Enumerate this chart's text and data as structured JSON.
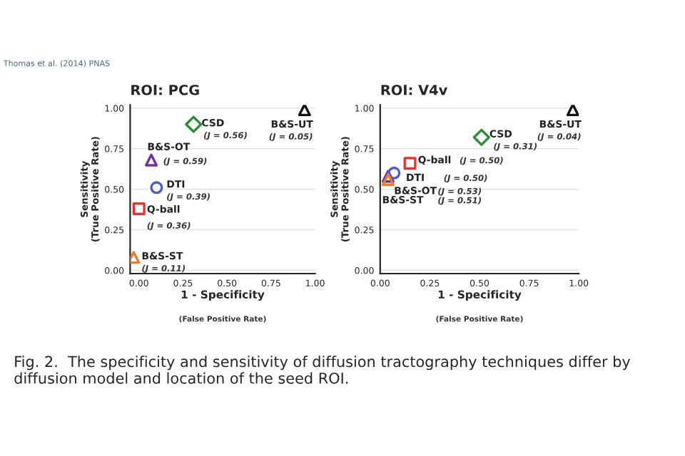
{
  "chart_data": [
    {
      "type": "scatter",
      "title": "ROI: PCG",
      "xlabel": "1 - Specificity\n(False Positive Rate)",
      "ylabel": "Sensitivity\n(True Positive Rate)",
      "xlim": [
        -0.05,
        1.0
      ],
      "ylim": [
        -0.02,
        1.02
      ],
      "xticks": [
        {
          "value": 0,
          "label": "0.00"
        },
        {
          "value": 0.25,
          "label": "0.25"
        },
        {
          "value": 0.5,
          "label": "0.50"
        },
        {
          "value": 0.75,
          "label": "0.75"
        },
        {
          "value": 1,
          "label": "1.00"
        }
      ],
      "yticks": [
        {
          "value": 0,
          "label": "0.00"
        },
        {
          "value": 0.25,
          "label": "0.25"
        },
        {
          "value": 0.5,
          "label": "0.50"
        },
        {
          "value": 0.75,
          "label": "0.75"
        },
        {
          "value": 1,
          "label": "1.00"
        }
      ],
      "grid": "y",
      "legend": false,
      "series": [
        {
          "name": "CSD",
          "color": "#2e8b3a",
          "marker": "diamond",
          "x": [
            0.31
          ],
          "values": [
            0.9
          ]
        },
        {
          "name": "B&S-UT",
          "color": "#111111",
          "marker": "triangle",
          "x": [
            0.94
          ],
          "values": [
            0.99
          ]
        },
        {
          "name": "B&S-OT",
          "color": "#7030a0",
          "marker": "triangle",
          "x": [
            0.07
          ],
          "values": [
            0.68
          ]
        },
        {
          "name": "DTI",
          "color": "#4a5fc1",
          "marker": "circle",
          "x": [
            0.1
          ],
          "values": [
            0.51
          ]
        },
        {
          "name": "Q-ball",
          "color": "#e8322d",
          "marker": "square",
          "x": [
            0.0
          ],
          "values": [
            0.38
          ]
        },
        {
          "name": "B&S-ST",
          "color": "#e87d2a",
          "marker": "triangle",
          "x": [
            -0.03
          ],
          "values": [
            0.08
          ]
        }
      ],
      "annotations": [
        {
          "text": "(J = 0.56)",
          "x": 0.31,
          "y": 0.9
        },
        {
          "text": "(J = 0.05)",
          "x": 0.94,
          "y": 0.99
        },
        {
          "text": "(J = 0.59)",
          "x": 0.07,
          "y": 0.68
        },
        {
          "text": "(J = 0.39)",
          "x": 0.1,
          "y": 0.51
        },
        {
          "text": "(J = 0.36)",
          "x": 0.0,
          "y": 0.38
        },
        {
          "text": "(J = 0.11)",
          "x": -0.03,
          "y": 0.08
        },
        "Thomas et al. (2014) PNAS",
        "Fig. 2.  The specificity and sensitivity of diffusion tractography techniques differ by diffusion model and location of the seed ROI."
      ]
    },
    {
      "type": "scatter",
      "title": "ROI: V4v",
      "xlabel": "1 - Specificity\n(False Positive Rate)",
      "ylabel": "Sensitivity\n(True Positive Rate)",
      "xlim": [
        0.0,
        1.0
      ],
      "ylim": [
        -0.02,
        1.02
      ],
      "xticks": [
        {
          "value": 0,
          "label": "0.00"
        },
        {
          "value": 0.25,
          "label": "0.25"
        },
        {
          "value": 0.5,
          "label": "0.50"
        },
        {
          "value": 0.75,
          "label": "0.75"
        },
        {
          "value": 1,
          "label": "1.00"
        }
      ],
      "yticks": [
        {
          "value": 0,
          "label": "0.00"
        },
        {
          "value": 0.25,
          "label": "0.25"
        },
        {
          "value": 0.5,
          "label": "0.50"
        },
        {
          "value": 0.75,
          "label": "0.75"
        },
        {
          "value": 1,
          "label": "1.00"
        }
      ],
      "grid": "y",
      "legend": false,
      "series": [
        {
          "name": "CSD",
          "color": "#2e8b3a",
          "marker": "diamond",
          "x": [
            0.51
          ],
          "values": [
            0.82
          ]
        },
        {
          "name": "B&S-UT",
          "color": "#111111",
          "marker": "triangle",
          "x": [
            0.97
          ],
          "values": [
            0.99
          ]
        },
        {
          "name": "B&S-OT",
          "color": "#7030a0",
          "marker": "triangle",
          "x": [
            0.04
          ],
          "values": [
            0.58
          ]
        },
        {
          "name": "DTI",
          "color": "#4a5fc1",
          "marker": "circle",
          "x": [
            0.07
          ],
          "values": [
            0.6
          ]
        },
        {
          "name": "Q-ball",
          "color": "#e8322d",
          "marker": "square",
          "x": [
            0.15
          ],
          "values": [
            0.66
          ]
        },
        {
          "name": "B&S-ST",
          "color": "#e87d2a",
          "marker": "triangle",
          "x": [
            0.04
          ],
          "values": [
            0.56
          ]
        }
      ],
      "annotations": [
        "(J = 0.31)",
        "(J = 0.04)",
        "(J = 0.53)",
        "(J = 0.50)",
        "(J = 0.50)",
        "(J = 0.51)"
      ]
    }
  ]
}
